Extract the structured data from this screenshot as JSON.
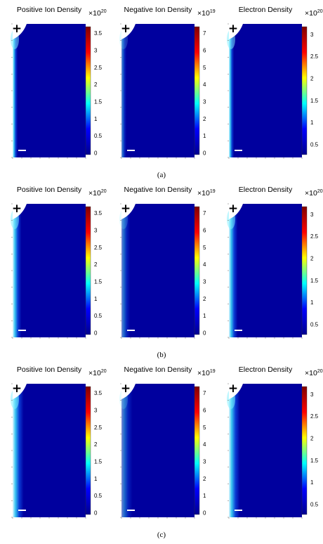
{
  "rows": [
    {
      "caption": "(a)",
      "spread": 0.07,
      "panels": [
        {
          "title": "Positive Ion Density",
          "exp": "20",
          "ticks": [
            "3.5",
            "3",
            "2.5",
            "2",
            "1.5",
            "1",
            "0.5",
            "0"
          ]
        },
        {
          "title": "Negative Ion Density",
          "exp": "19",
          "ticks": [
            "7",
            "6",
            "5",
            "4",
            "3",
            "2",
            "1",
            "0"
          ]
        },
        {
          "title": "Electron Density",
          "exp": "20",
          "ticks": [
            "3",
            "2.5",
            "2",
            "1.5",
            "1",
            "0.5"
          ]
        }
      ]
    },
    {
      "caption": "(b)",
      "spread": 0.12,
      "panels": [
        {
          "title": "Positive Ion Density",
          "exp": "20",
          "ticks": [
            "3.5",
            "3",
            "2.5",
            "2",
            "1.5",
            "1",
            "0.5",
            "0"
          ]
        },
        {
          "title": "Negative Ion Density",
          "exp": "19",
          "ticks": [
            "7",
            "6",
            "5",
            "4",
            "3",
            "2",
            "1",
            "0"
          ]
        },
        {
          "title": "Electron Density",
          "exp": "20",
          "ticks": [
            "3",
            "2.5",
            "2",
            "1.5",
            "1",
            "0.5"
          ]
        }
      ]
    },
    {
      "caption": "(c)",
      "spread": 0.15,
      "panels": [
        {
          "title": "Positive Ion Density",
          "exp": "20",
          "ticks": [
            "3.5",
            "3",
            "2.5",
            "2",
            "1.5",
            "1",
            "0.5",
            "0"
          ]
        },
        {
          "title": "Negative Ion Density",
          "exp": "19",
          "ticks": [
            "7",
            "6",
            "5",
            "4",
            "3",
            "2",
            "1",
            "0"
          ]
        },
        {
          "title": "Electron Density",
          "exp": "20",
          "ticks": [
            "3",
            "2.5",
            "2",
            "1.5",
            "1",
            "0.5"
          ]
        }
      ]
    }
  ],
  "colorbar_base": "×10",
  "electrode_symbol": "+",
  "colormap": [
    "#00008f",
    "#0000ff",
    "#00ffff",
    "#ffff00",
    "#ff0000",
    "#800000"
  ]
}
